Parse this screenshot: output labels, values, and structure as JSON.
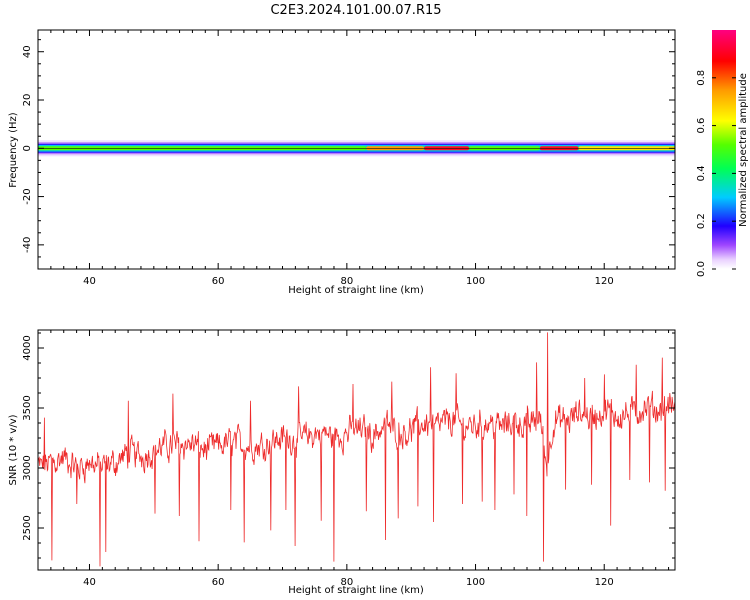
{
  "title": "C2E3.2024.101.00.07.R15",
  "colors": {
    "snr_line": "#ee2a2a",
    "axis": "#000000"
  },
  "chart_data": [
    {
      "type": "heatmap",
      "xlabel": "Height of straight line (km)",
      "ylabel": "Frequency (Hz)",
      "xlim": [
        32,
        131
      ],
      "ylim": [
        -50,
        49
      ],
      "x_ticks": [
        40,
        60,
        80,
        100,
        120
      ],
      "y_ticks": [
        -40,
        -20,
        0,
        20,
        40
      ],
      "grid": false,
      "colormap": "rainbow (magenta-red-yellow-green-cyan-blue-violet-white)",
      "colorbar": {
        "label": "Normalized spectral amplitude",
        "range": [
          0.0,
          1.0
        ],
        "ticks": [
          0.0,
          0.2,
          0.4,
          0.6,
          0.8
        ]
      },
      "band_center_hz": 0,
      "band_segments": [
        {
          "x_start": 32,
          "x_end": 83,
          "peak_amplitude": 0.45
        },
        {
          "x_start": 83,
          "x_end": 92,
          "peak_amplitude": 0.8
        },
        {
          "x_start": 92,
          "x_end": 99,
          "peak_amplitude": 1.0
        },
        {
          "x_start": 99,
          "x_end": 110,
          "peak_amplitude": 0.5
        },
        {
          "x_start": 110,
          "x_end": 116,
          "peak_amplitude": 0.95
        },
        {
          "x_start": 116,
          "x_end": 131,
          "peak_amplitude": 0.65
        }
      ]
    },
    {
      "type": "line",
      "xlabel": "Height of straight line (km)",
      "ylabel": "SNR (10 * v/v)",
      "xlim": [
        32,
        131
      ],
      "ylim": [
        2150,
        4150
      ],
      "x_ticks": [
        40,
        60,
        80,
        100,
        120
      ],
      "y_ticks": [
        2500,
        3000,
        3500,
        4000
      ],
      "grid": false,
      "series": [
        {
          "x": [
            32,
            34,
            36,
            38,
            40,
            42,
            44,
            46,
            48,
            50,
            52,
            54,
            56,
            58,
            60,
            62,
            64,
            66,
            68,
            70,
            72,
            74,
            76,
            78,
            80,
            82,
            84,
            86,
            88,
            90,
            92,
            94,
            96,
            98,
            100,
            102,
            104,
            106,
            108,
            110,
            111,
            112,
            114,
            116,
            118,
            120,
            122,
            124,
            126,
            128,
            130,
            131
          ],
          "values": [
            3000,
            3050,
            3080,
            3000,
            3050,
            3000,
            3050,
            3120,
            3100,
            3150,
            3180,
            3200,
            3200,
            3150,
            3180,
            3220,
            3200,
            3180,
            3220,
            3250,
            3240,
            3260,
            3300,
            3250,
            3300,
            3320,
            3280,
            3360,
            3300,
            3320,
            3380,
            3340,
            3400,
            3350,
            3360,
            3380,
            3340,
            3400,
            3350,
            3420,
            3000,
            3400,
            3380,
            3460,
            3420,
            3480,
            3440,
            3450,
            3500,
            3480,
            3520,
            3500
          ],
          "dips": [
            {
              "x": 34.2,
              "y": 2230
            },
            {
              "x": 41.6,
              "y": 2180
            },
            {
              "x": 42.5,
              "y": 2300
            },
            {
              "x": 38.0,
              "y": 2700
            },
            {
              "x": 50.2,
              "y": 2620
            },
            {
              "x": 54.0,
              "y": 2600
            },
            {
              "x": 57.0,
              "y": 2390
            },
            {
              "x": 62.0,
              "y": 2650
            },
            {
              "x": 64.0,
              "y": 2380
            },
            {
              "x": 68.2,
              "y": 2480
            },
            {
              "x": 70.5,
              "y": 2650
            },
            {
              "x": 72.0,
              "y": 2350
            },
            {
              "x": 76.0,
              "y": 2560
            },
            {
              "x": 78.0,
              "y": 2220
            },
            {
              "x": 83.0,
              "y": 2640
            },
            {
              "x": 86.0,
              "y": 2400
            },
            {
              "x": 88.0,
              "y": 2580
            },
            {
              "x": 91.0,
              "y": 2680
            },
            {
              "x": 93.5,
              "y": 2550
            },
            {
              "x": 98.0,
              "y": 2700
            },
            {
              "x": 101.0,
              "y": 2720
            },
            {
              "x": 103.0,
              "y": 2650
            },
            {
              "x": 106.0,
              "y": 2780
            },
            {
              "x": 108.0,
              "y": 2600
            },
            {
              "x": 110.6,
              "y": 2220
            },
            {
              "x": 114.0,
              "y": 2820
            },
            {
              "x": 118.0,
              "y": 2860
            },
            {
              "x": 121.0,
              "y": 2520
            },
            {
              "x": 124.0,
              "y": 2900
            },
            {
              "x": 127.0,
              "y": 2880
            },
            {
              "x": 129.5,
              "y": 2810
            }
          ],
          "spikes": [
            {
              "x": 111.2,
              "y": 4130
            },
            {
              "x": 109.5,
              "y": 3880
            },
            {
              "x": 93.0,
              "y": 3840
            },
            {
              "x": 97.0,
              "y": 3790
            },
            {
              "x": 120.0,
              "y": 3780
            },
            {
              "x": 129.0,
              "y": 3920
            },
            {
              "x": 125.0,
              "y": 3860
            },
            {
              "x": 117.0,
              "y": 3750
            },
            {
              "x": 87.0,
              "y": 3720
            },
            {
              "x": 81.0,
              "y": 3700
            },
            {
              "x": 72.5,
              "y": 3680
            },
            {
              "x": 65.0,
              "y": 3560
            },
            {
              "x": 53.0,
              "y": 3620
            },
            {
              "x": 46.0,
              "y": 3560
            },
            {
              "x": 33.0,
              "y": 3420
            }
          ]
        }
      ]
    }
  ]
}
